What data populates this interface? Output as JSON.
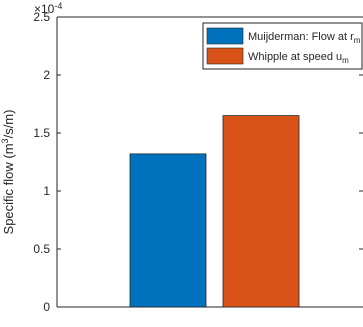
{
  "chart_data": {
    "type": "bar",
    "title": "",
    "xlabel": "",
    "ylabel": "Specific flow (m",
    "ylabel_sup": "3",
    "ylabel_tail": "/s/m)",
    "exponent_base": "×10",
    "exponent_power": "-4",
    "ylim": [
      0,
      2.5
    ],
    "y_ticks": [
      "0",
      "0.5",
      "1",
      "1.5",
      "2",
      "2.5"
    ],
    "y_tick_values": [
      0,
      0.5,
      1,
      1.5,
      2,
      2.5
    ],
    "grid": false,
    "legend_position": "top-right",
    "series": [
      {
        "name": "Muijderman: Flow at r",
        "name_sub": "m",
        "value": 1.32,
        "color": "#0072BD"
      },
      {
        "name": "Whipple at speed u",
        "name_sub": "m",
        "value": 1.65,
        "color": "#D95319"
      }
    ]
  }
}
